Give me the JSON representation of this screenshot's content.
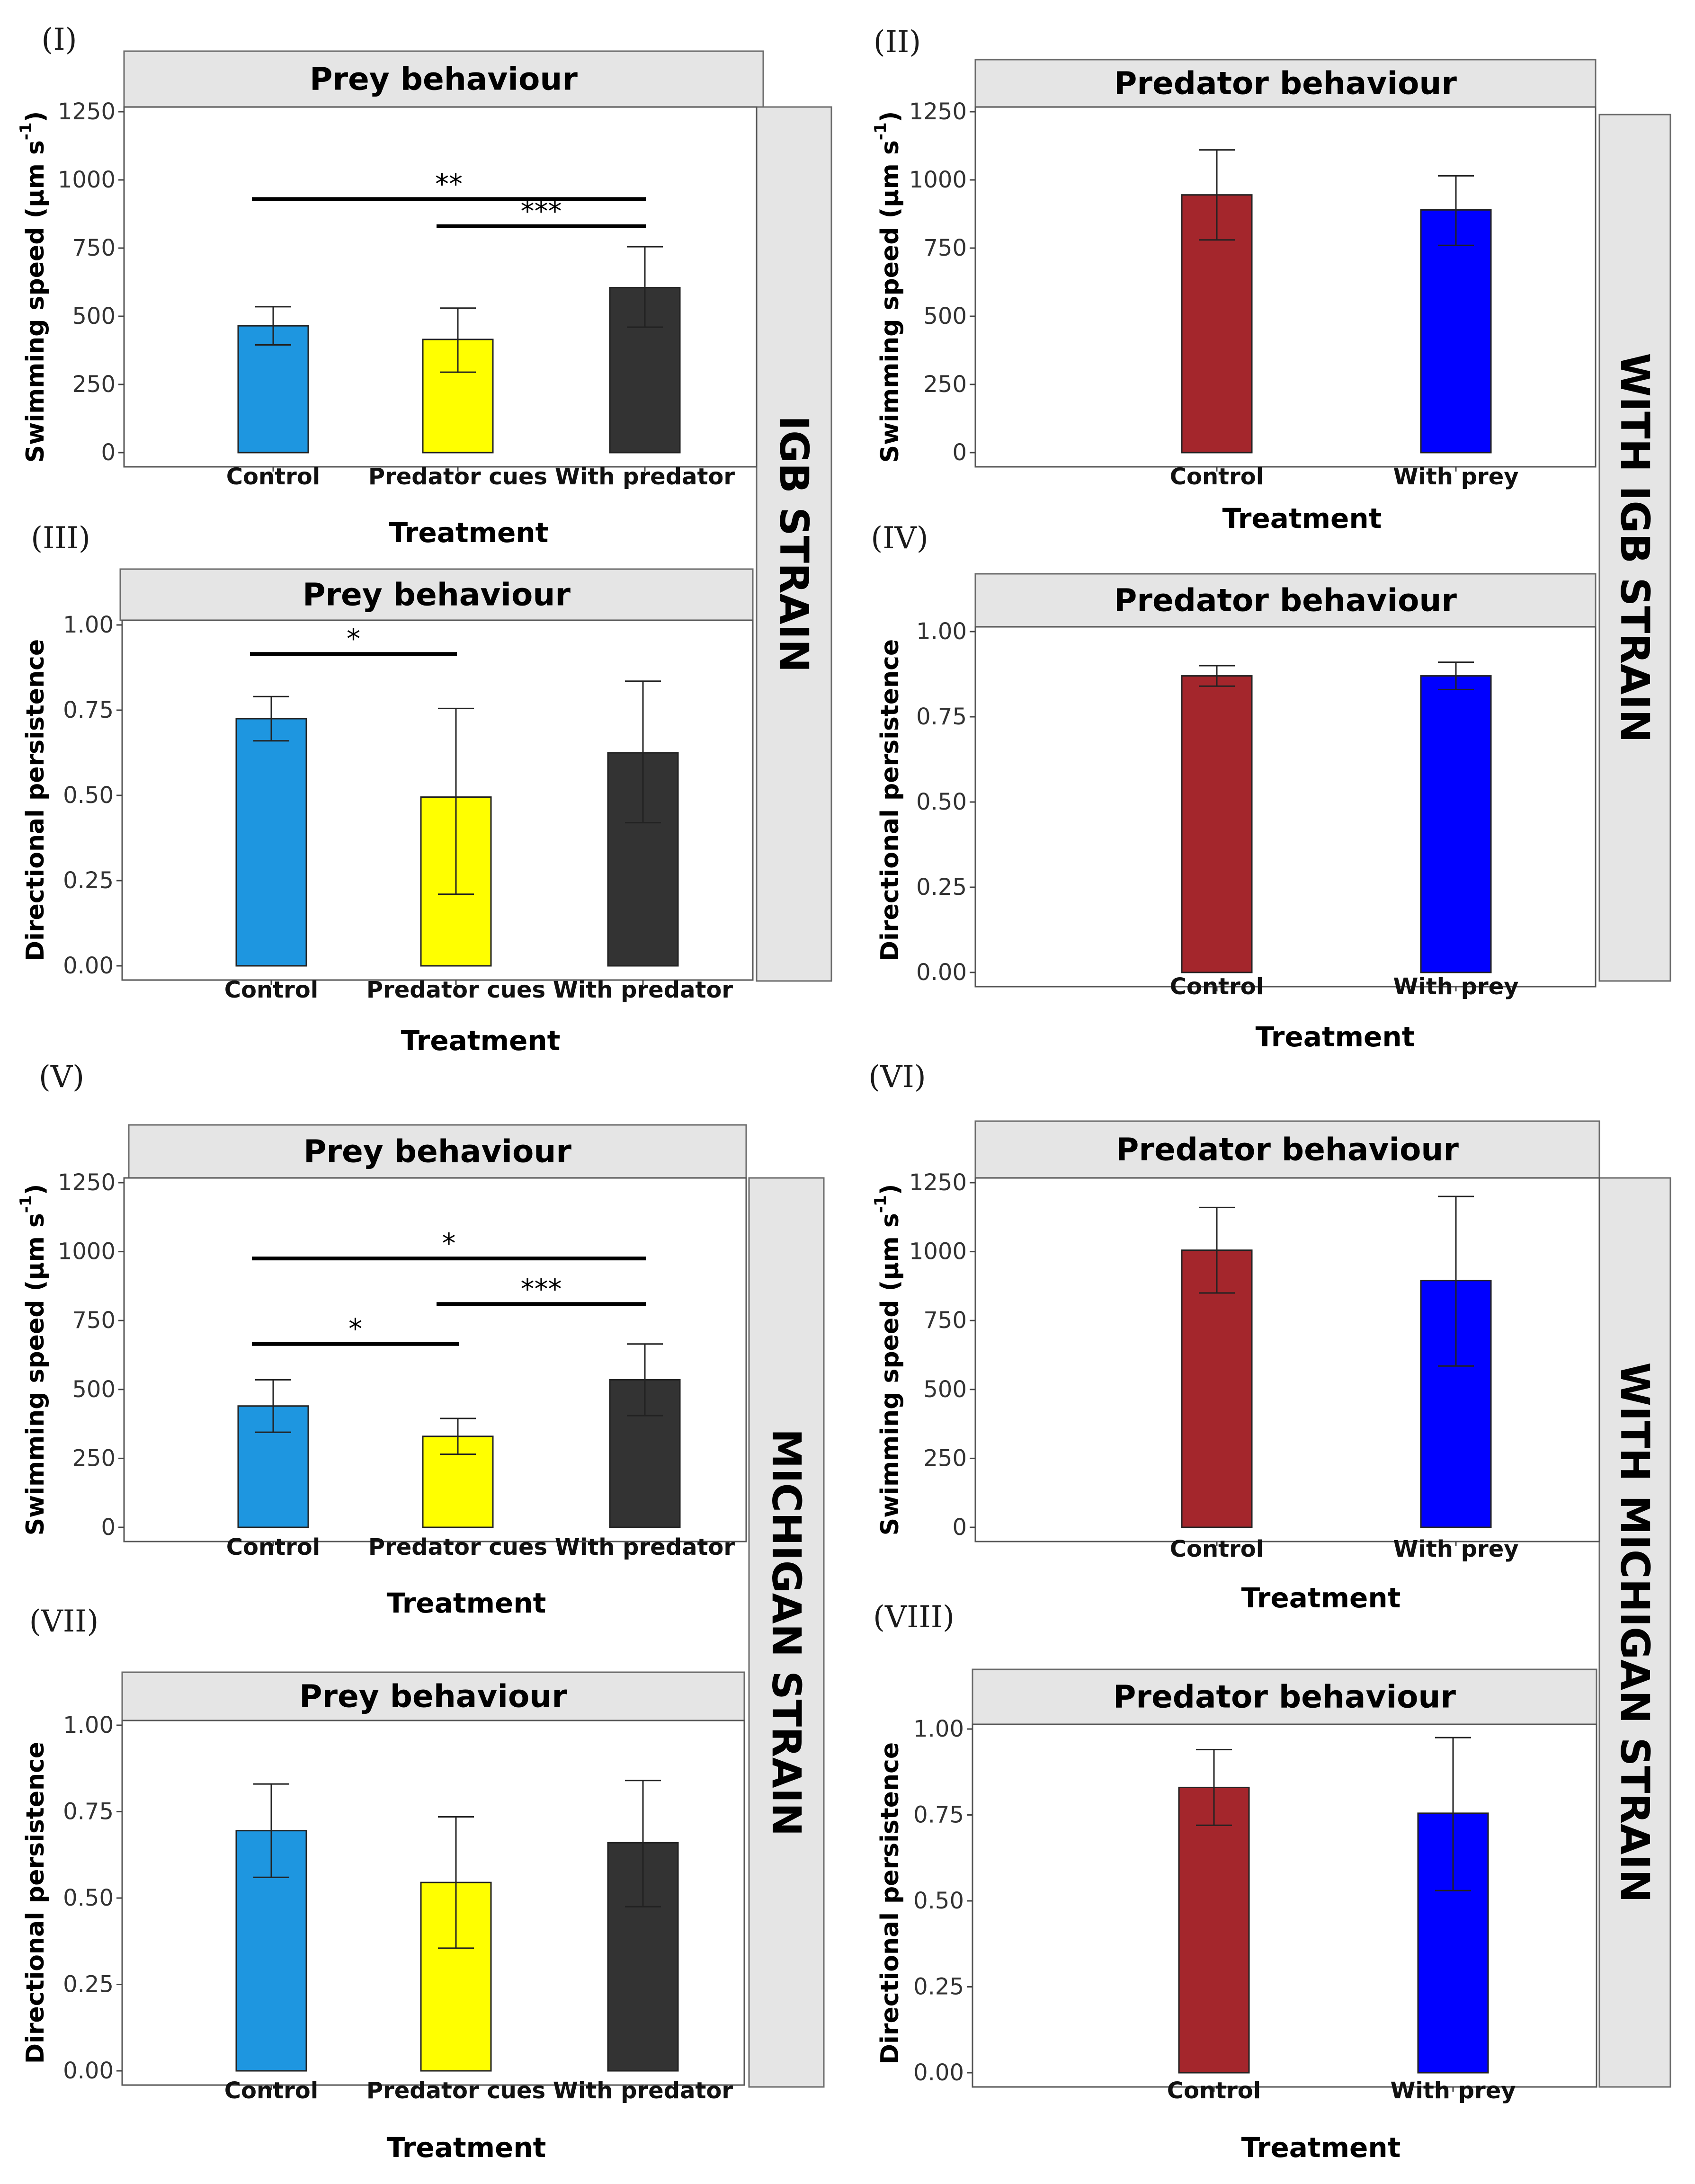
{
  "side_strips": [
    {
      "id": "igb-strain",
      "label": "IGB STRAIN"
    },
    {
      "id": "with-igb-strain",
      "label": "WITH IGB STRAIN"
    },
    {
      "id": "michigan-strain",
      "label": "MICHIGAN STRAIN"
    },
    {
      "id": "with-michigan-strain",
      "label": "WITH MICHIGAN STRAIN"
    }
  ],
  "colors": {
    "control_prey": "#1E96E0",
    "predator_cues": "#FFFF00",
    "with_predator": "#333333",
    "control_predator": "#A4262C",
    "with_prey": "#0000FF",
    "strip_bg": "#E5E5E5"
  },
  "chart_data": [
    {
      "id": "I",
      "panel_label": "(I)",
      "type": "bar",
      "title": "Prey behaviour",
      "xlabel": "Treatment",
      "ylabel": "Swimming speed (μm s",
      "ylabel_sup": "-1",
      "ylabel_close": ")",
      "categories": [
        "Control",
        "Predator cues",
        "With predator"
      ],
      "values": [
        465,
        415,
        605
      ],
      "error_low": [
        395,
        295,
        460
      ],
      "error_high": [
        535,
        530,
        755
      ],
      "ylim": [
        0,
        1250
      ],
      "yticks": [
        0,
        250,
        500,
        750,
        1000,
        1250
      ],
      "ytick_labels": [
        "0",
        "250",
        "500",
        "750",
        "1000",
        "1250"
      ],
      "colors": [
        "#1E96E0",
        "#FFFF00",
        "#333333"
      ],
      "significance": [
        {
          "from": 0,
          "to": 2,
          "y": 930,
          "label": "**"
        },
        {
          "from": 1,
          "to": 2,
          "y": 830,
          "label": "***"
        }
      ]
    },
    {
      "id": "II",
      "panel_label": "(II)",
      "type": "bar",
      "title": "Predator behaviour",
      "xlabel": "Treatment",
      "ylabel": "Swimming speed (μm s",
      "ylabel_sup": "-1",
      "ylabel_close": ")",
      "categories": [
        "Control",
        "With prey"
      ],
      "values": [
        945,
        890
      ],
      "error_low": [
        780,
        760
      ],
      "error_high": [
        1110,
        1015
      ],
      "ylim": [
        0,
        1250
      ],
      "yticks": [
        0,
        250,
        500,
        750,
        1000,
        1250
      ],
      "ytick_labels": [
        "0",
        "250",
        "500",
        "750",
        "1000",
        "1250"
      ],
      "colors": [
        "#A4262C",
        "#0000FF"
      ],
      "significance": []
    },
    {
      "id": "III",
      "panel_label": "(III)",
      "type": "bar",
      "title": "Prey behaviour",
      "xlabel": "Treatment",
      "ylabel": "Directional persistence",
      "categories": [
        "Control",
        "Predator cues",
        "With predator"
      ],
      "values": [
        0.725,
        0.495,
        0.625
      ],
      "error_low": [
        0.66,
        0.21,
        0.42
      ],
      "error_high": [
        0.79,
        0.755,
        0.835
      ],
      "ylim": [
        0,
        1.0
      ],
      "yticks": [
        0,
        0.25,
        0.5,
        0.75,
        1.0
      ],
      "ytick_labels": [
        "0.00",
        "0.25",
        "0.50",
        "0.75",
        "1.00"
      ],
      "colors": [
        "#1E96E0",
        "#FFFF00",
        "#333333"
      ],
      "significance": [
        {
          "from": 0,
          "to": 1,
          "y": 0.915,
          "label": "*"
        }
      ]
    },
    {
      "id": "IV",
      "panel_label": "(IV)",
      "type": "bar",
      "title": "Predator behaviour",
      "xlabel": "Treatment",
      "ylabel": "Directional persistence",
      "categories": [
        "Control",
        "With prey"
      ],
      "values": [
        0.87,
        0.87
      ],
      "error_low": [
        0.84,
        0.83
      ],
      "error_high": [
        0.9,
        0.91
      ],
      "ylim": [
        0,
        1.0
      ],
      "yticks": [
        0,
        0.25,
        0.5,
        0.75,
        1.0
      ],
      "ytick_labels": [
        "0.00",
        "0.25",
        "0.50",
        "0.75",
        "1.00"
      ],
      "colors": [
        "#A4262C",
        "#0000FF"
      ],
      "significance": []
    },
    {
      "id": "V",
      "panel_label": "(V)",
      "type": "bar",
      "title": "Prey behaviour",
      "xlabel": "Treatment",
      "ylabel": "Swimming speed (μm s",
      "ylabel_sup": "-1",
      "ylabel_close": ")",
      "categories": [
        "Control",
        "Predator cues",
        "With predator"
      ],
      "values": [
        440,
        330,
        535
      ],
      "error_low": [
        345,
        265,
        405
      ],
      "error_high": [
        535,
        395,
        665
      ],
      "ylim": [
        0,
        1250
      ],
      "yticks": [
        0,
        250,
        500,
        750,
        1000,
        1250
      ],
      "ytick_labels": [
        "0",
        "250",
        "500",
        "750",
        "1000",
        "1250"
      ],
      "colors": [
        "#1E96E0",
        "#FFFF00",
        "#333333"
      ],
      "significance": [
        {
          "from": 0,
          "to": 2,
          "y": 975,
          "label": "*"
        },
        {
          "from": 1,
          "to": 2,
          "y": 810,
          "label": "***"
        },
        {
          "from": 0,
          "to": 1,
          "y": 665,
          "label": "*"
        }
      ]
    },
    {
      "id": "VI",
      "panel_label": "(VI)",
      "type": "bar",
      "title": "Predator behaviour",
      "xlabel": "Treatment",
      "ylabel": "Swimming speed (μm s",
      "ylabel_sup": "-1",
      "ylabel_close": ")",
      "categories": [
        "Control",
        "With prey"
      ],
      "values": [
        1005,
        895
      ],
      "error_low": [
        850,
        585
      ],
      "error_high": [
        1160,
        1200
      ],
      "ylim": [
        0,
        1250
      ],
      "yticks": [
        0,
        250,
        500,
        750,
        1000,
        1250
      ],
      "ytick_labels": [
        "0",
        "250",
        "500",
        "750",
        "1000",
        "1250"
      ],
      "colors": [
        "#A4262C",
        "#0000FF"
      ],
      "significance": []
    },
    {
      "id": "VII",
      "panel_label": "(VII)",
      "type": "bar",
      "title": "Prey behaviour",
      "xlabel": "Treatment",
      "ylabel": "Directional persistence",
      "categories": [
        "Control",
        "Predator cues",
        "With predator"
      ],
      "values": [
        0.695,
        0.545,
        0.66
      ],
      "error_low": [
        0.56,
        0.355,
        0.475
      ],
      "error_high": [
        0.83,
        0.735,
        0.84
      ],
      "ylim": [
        0,
        1.0
      ],
      "yticks": [
        0,
        0.25,
        0.5,
        0.75,
        1.0
      ],
      "ytick_labels": [
        "0.00",
        "0.25",
        "0.50",
        "0.75",
        "1.00"
      ],
      "colors": [
        "#1E96E0",
        "#FFFF00",
        "#333333"
      ],
      "significance": []
    },
    {
      "id": "VIII",
      "panel_label": "(VIII)",
      "type": "bar",
      "title": "Predator behaviour",
      "xlabel": "Treatment",
      "ylabel": "Directional persistence",
      "categories": [
        "Control",
        "With prey"
      ],
      "values": [
        0.83,
        0.755
      ],
      "error_low": [
        0.72,
        0.53
      ],
      "error_high": [
        0.94,
        0.975
      ],
      "ylim": [
        0,
        1.0
      ],
      "yticks": [
        0,
        0.25,
        0.5,
        0.75,
        1.0
      ],
      "ytick_labels": [
        "0.00",
        "0.25",
        "0.50",
        "0.75",
        "1.00"
      ],
      "colors": [
        "#A4262C",
        "#0000FF"
      ],
      "significance": []
    }
  ]
}
